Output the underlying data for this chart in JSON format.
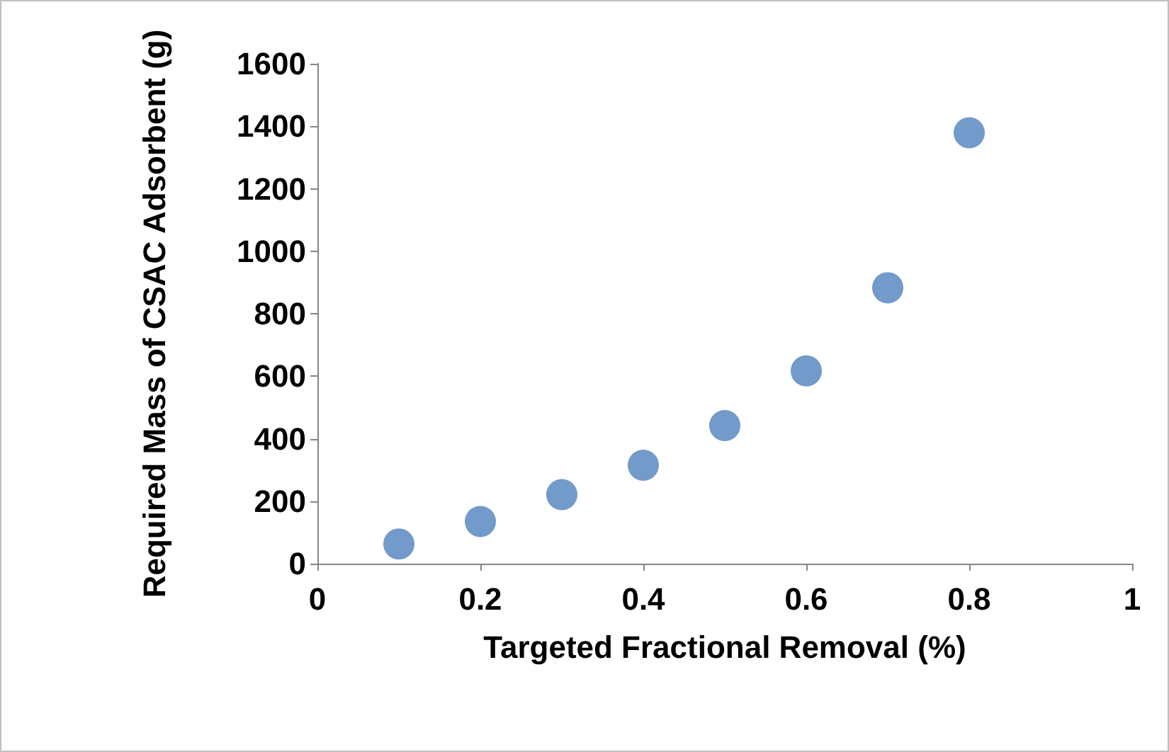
{
  "chart_data": {
    "type": "scatter",
    "xlabel": "Targeted Fractional Removal (%)",
    "ylabel": "Required Mass of CSAC Adsorbent (g)",
    "x": [
      0.1,
      0.2,
      0.3,
      0.4,
      0.5,
      0.6,
      0.7,
      0.8
    ],
    "series": [
      {
        "color": "#4f81bd",
        "values": [
          63,
          135,
          221,
          315,
          442,
          617,
          883,
          1379
        ]
      }
    ],
    "xlim": [
      0,
      1
    ],
    "xticks": [
      0,
      0.2,
      0.4,
      0.6,
      0.8,
      1
    ],
    "ylim": [
      0,
      1600
    ],
    "yticks": [
      0,
      200,
      400,
      600,
      800,
      1000,
      1200,
      1400,
      1600
    ],
    "marker": "circle",
    "grid": false
  }
}
